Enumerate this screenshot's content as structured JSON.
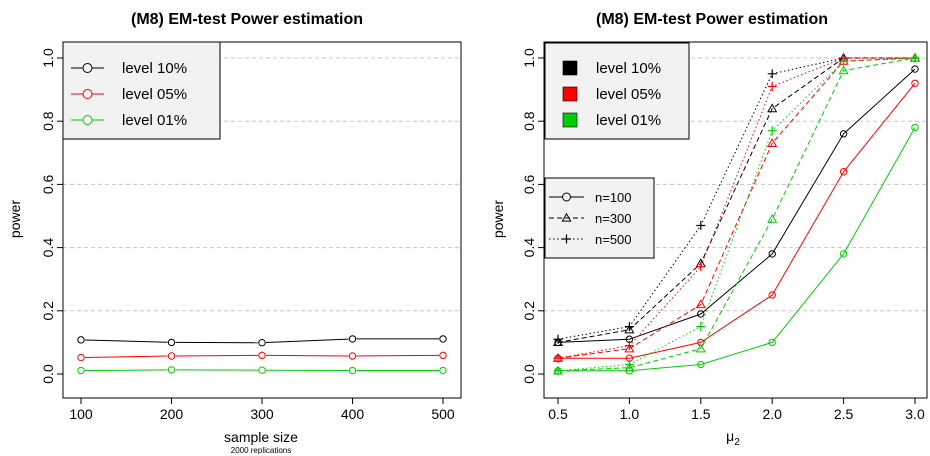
{
  "chart_data": [
    {
      "type": "line",
      "title": "(M8) EM-test Power estimation",
      "xlabel": "sample size",
      "xsub": "2000 replications",
      "ylabel": "power",
      "x": [
        100,
        200,
        300,
        400,
        500
      ],
      "xticks": [
        "100",
        "200",
        "300",
        "400",
        "500"
      ],
      "ylim": [
        0,
        1
      ],
      "yticks": [
        "0.0",
        "0.2",
        "0.4",
        "0.6",
        "0.8",
        "1.0"
      ],
      "grid": "horizontal dashed",
      "legend_position": "top-left",
      "series": [
        {
          "name": "level 10%",
          "color": "#000000",
          "values": [
            0.108,
            0.1,
            0.099,
            0.111,
            0.111
          ]
        },
        {
          "name": "level 05%",
          "color": "#ff0000",
          "values": [
            0.052,
            0.057,
            0.059,
            0.057,
            0.059
          ]
        },
        {
          "name": "level 01%",
          "color": "#00cc00",
          "values": [
            0.011,
            0.013,
            0.012,
            0.011,
            0.011
          ]
        }
      ]
    },
    {
      "type": "line",
      "title": "(M8) EM-test Power estimation",
      "xlabel": "μ",
      "xlabel_sub": "2",
      "ylabel": "power",
      "x": [
        0.5,
        1.0,
        1.5,
        2.0,
        2.5,
        3.0
      ],
      "xticks": [
        "0.5",
        "1.0",
        "1.5",
        "2.0",
        "2.5",
        "3.0"
      ],
      "ylim": [
        0,
        1
      ],
      "yticks": [
        "0.0",
        "0.2",
        "0.4",
        "0.6",
        "0.8",
        "1.0"
      ],
      "grid": "horizontal dashed",
      "level_legend_position": "top-left",
      "level_legend": [
        {
          "name": "level 10%",
          "color": "#000000"
        },
        {
          "name": "level 05%",
          "color": "#ff0000"
        },
        {
          "name": "level 01%",
          "color": "#00cc00"
        }
      ],
      "size_legend_position": "left",
      "size_legend": [
        {
          "name": "n=100",
          "line": "solid",
          "marker": "circle"
        },
        {
          "name": "n=300",
          "line": "dashed",
          "marker": "triangle"
        },
        {
          "name": "n=500",
          "line": "dotted",
          "marker": "plus"
        }
      ],
      "series": [
        {
          "level": "level 10%",
          "n": "n=100",
          "color": "#000000",
          "line": "solid",
          "marker": "circle",
          "values": [
            0.1,
            0.11,
            0.19,
            0.38,
            0.76,
            0.965
          ]
        },
        {
          "level": "level 10%",
          "n": "n=300",
          "color": "#000000",
          "line": "dashed",
          "marker": "triangle",
          "values": [
            0.1,
            0.14,
            0.35,
            0.84,
            1.0,
            1.0
          ]
        },
        {
          "level": "level 10%",
          "n": "n=500",
          "color": "#000000",
          "line": "dotted",
          "marker": "plus",
          "values": [
            0.11,
            0.15,
            0.47,
            0.95,
            1.0,
            1.0
          ]
        },
        {
          "level": "level 05%",
          "n": "n=100",
          "color": "#ff0000",
          "line": "solid",
          "marker": "circle",
          "values": [
            0.05,
            0.05,
            0.1,
            0.25,
            0.64,
            0.92
          ]
        },
        {
          "level": "level 05%",
          "n": "n=300",
          "color": "#ff0000",
          "line": "dashed",
          "marker": "triangle",
          "values": [
            0.05,
            0.08,
            0.22,
            0.73,
            0.99,
            1.0
          ]
        },
        {
          "level": "level 05%",
          "n": "n=500",
          "color": "#ff0000",
          "line": "dotted",
          "marker": "plus",
          "values": [
            0.05,
            0.09,
            0.34,
            0.91,
            1.0,
            1.0
          ]
        },
        {
          "level": "level 01%",
          "n": "n=100",
          "color": "#00cc00",
          "line": "solid",
          "marker": "circle",
          "values": [
            0.01,
            0.01,
            0.03,
            0.1,
            0.38,
            0.78
          ]
        },
        {
          "level": "level 01%",
          "n": "n=300",
          "color": "#00cc00",
          "line": "dashed",
          "marker": "triangle",
          "values": [
            0.01,
            0.02,
            0.08,
            0.49,
            0.96,
            1.0
          ]
        },
        {
          "level": "level 01%",
          "n": "n=500",
          "color": "#00cc00",
          "line": "dotted",
          "marker": "plus",
          "values": [
            0.01,
            0.03,
            0.15,
            0.77,
            0.99,
            1.0
          ]
        }
      ]
    }
  ]
}
